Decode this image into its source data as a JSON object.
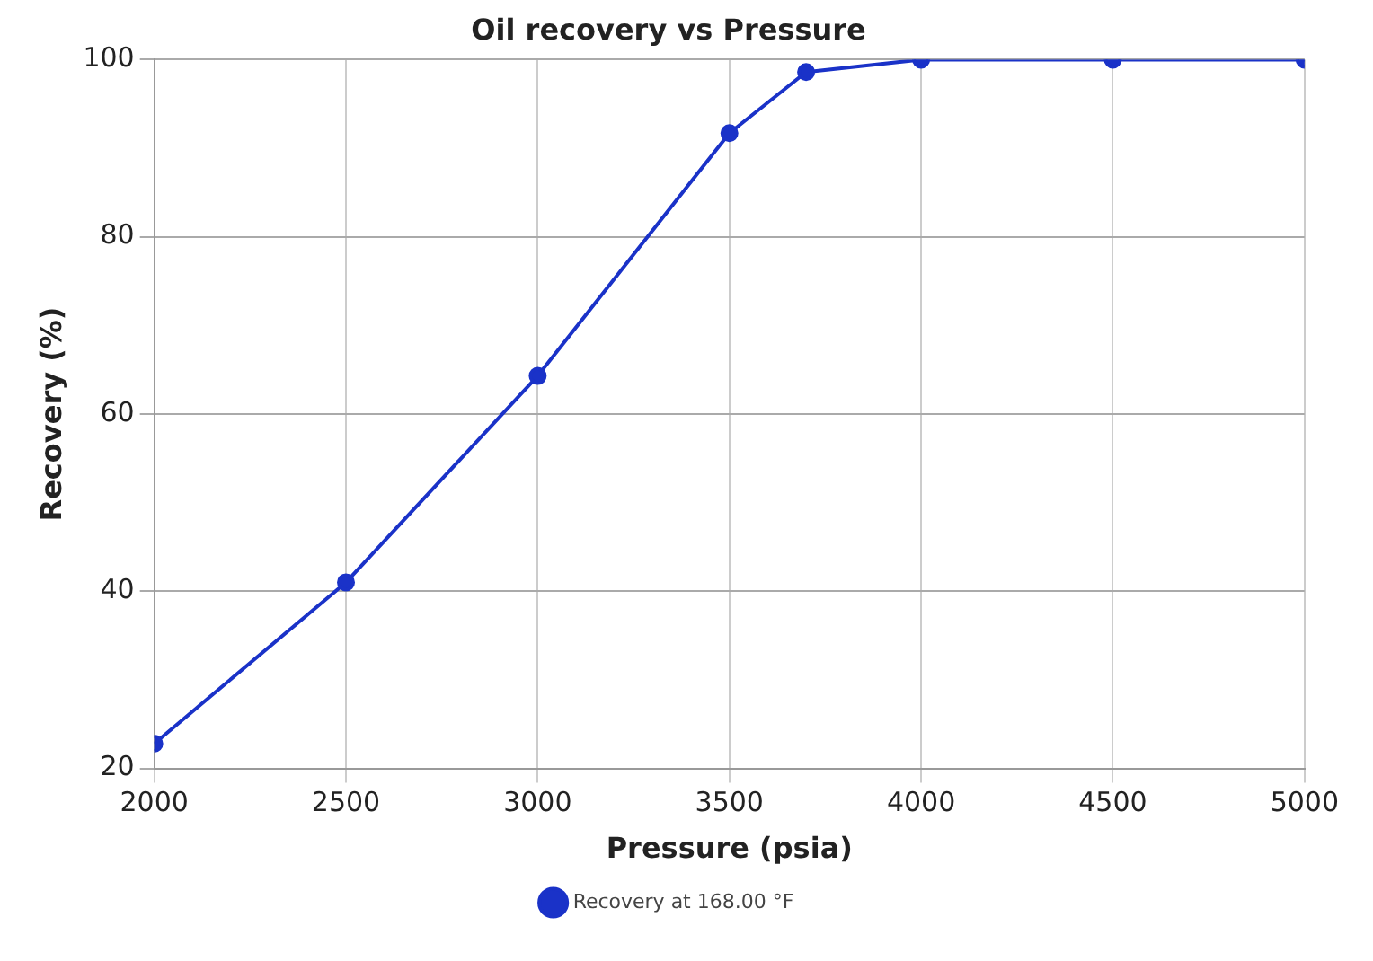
{
  "chart_data": {
    "type": "line",
    "title": "Oil recovery vs Pressure",
    "xlabel": "Pressure (psia)",
    "ylabel": "Recovery (%)",
    "x": [
      2000,
      2500,
      3000,
      3500,
      3700,
      4000,
      4500,
      5000
    ],
    "series": [
      {
        "name": "Recovery at 168.00 °F",
        "color": "#1a32c8",
        "values": [
          22.8,
          41,
          64.3,
          91.7,
          98.6,
          100,
          100,
          100
        ]
      }
    ],
    "xlim": [
      2000,
      5000
    ],
    "xticks": [
      2000,
      2500,
      3000,
      3500,
      4000,
      4500,
      5000
    ],
    "ylim": [
      20,
      100
    ],
    "yticks": [
      20,
      40,
      60,
      80,
      100
    ],
    "grid": true,
    "legend": "bottom",
    "marker": "circle",
    "line_style": "solid"
  }
}
